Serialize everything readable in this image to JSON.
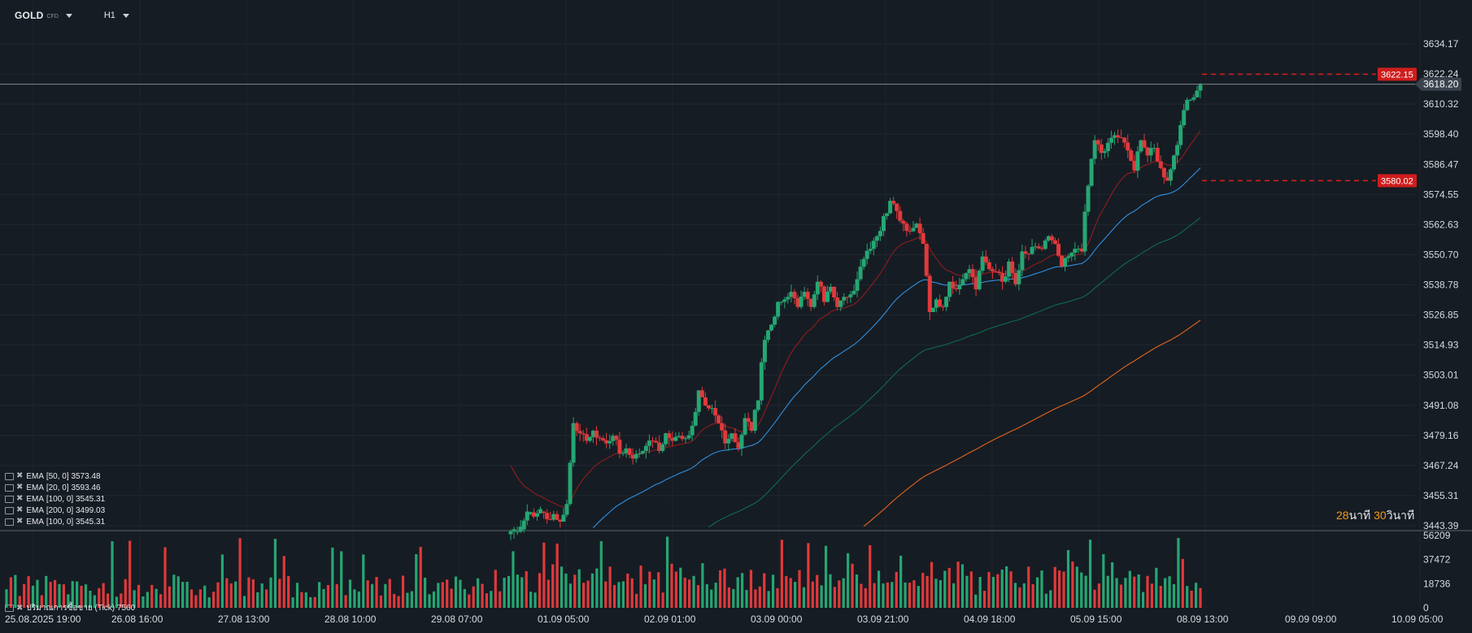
{
  "toolbar": {
    "symbol": "GOLD",
    "symbol_sub": "CFD",
    "timeframe": "H1"
  },
  "legend": [
    {
      "name": "EMA",
      "params": "[50, 0]",
      "value": "3573.48"
    },
    {
      "name": "EMA",
      "params": "[20, 0]",
      "value": "3593.46"
    },
    {
      "name": "EMA",
      "params": "[100, 0]",
      "value": "3545.31"
    },
    {
      "name": "EMA",
      "params": "[200, 0]",
      "value": "3499.03"
    },
    {
      "name": "EMA",
      "params": "[100, 0]",
      "value": "3545.31"
    }
  ],
  "volume_label": {
    "name": "ปริมาณการซื้อขาย (Tick)",
    "value": "7560"
  },
  "countdown": {
    "min": "28",
    "min_unit": "นาที",
    "sec": "30",
    "sec_unit": "วินาที"
  },
  "colors": {
    "background": "#161c23",
    "up": "#26a673",
    "down": "#e0393b",
    "price_tag": "#d01d1d",
    "ema20": "#8f1d1d",
    "ema50": "#2f8fe0",
    "ema100": "#0f6b50",
    "ema200": "#e26320"
  },
  "chart_data": {
    "type": "candlestick",
    "price_axis": [
      "3634.17",
      "3622.24",
      "3610.32",
      "3598.40",
      "3586.47",
      "3574.55",
      "3562.63",
      "3550.70",
      "3538.78",
      "3526.85",
      "3514.93",
      "3503.01",
      "3491.08",
      "3479.16",
      "3467.24",
      "3455.31",
      "3443.39"
    ],
    "ylim": [
      3443.39,
      3634.17
    ],
    "volume_axis": [
      "56209",
      "37472",
      "18736",
      "0"
    ],
    "volume_ylim": [
      0,
      56209
    ],
    "time_axis": [
      "25.08.2025 19:00",
      "26.08 16:00",
      "27.08 13:00",
      "28.08 10:00",
      "29.08 07:00",
      "01.09 05:00",
      "02.09 01:00",
      "03.09 00:00",
      "03.09 21:00",
      "04.09 18:00",
      "05.09 15:00",
      "08.09 13:00",
      "09.09 09:00",
      "10.09 05:00"
    ],
    "current_price": "3618.20",
    "markers": [
      {
        "label": "3622.15",
        "value": 3622.15
      },
      {
        "label": "3580.02",
        "value": 3580.02
      }
    ],
    "ohlc_anchors": [
      [
        3440,
        3442
      ],
      [
        3441,
        3443
      ],
      [
        3442,
        3449
      ],
      [
        3448,
        3447
      ],
      [
        3447,
        3450
      ],
      [
        3449,
        3446
      ],
      [
        3446,
        3448
      ],
      [
        3448,
        3445
      ],
      [
        3445,
        3452
      ],
      [
        3452,
        3484
      ],
      [
        3484,
        3480
      ],
      [
        3480,
        3477
      ],
      [
        3477,
        3481
      ],
      [
        3481,
        3478
      ],
      [
        3478,
        3476
      ],
      [
        3476,
        3479
      ],
      [
        3479,
        3472
      ],
      [
        3472,
        3474
      ],
      [
        3474,
        3470
      ],
      [
        3470,
        3472
      ],
      [
        3472,
        3475
      ],
      [
        3475,
        3477
      ],
      [
        3477,
        3473
      ],
      [
        3473,
        3480
      ],
      [
        3480,
        3477
      ],
      [
        3477,
        3479
      ],
      [
        3479,
        3478
      ],
      [
        3478,
        3483
      ],
      [
        3483,
        3497
      ],
      [
        3497,
        3491
      ],
      [
        3491,
        3490
      ],
      [
        3490,
        3484
      ],
      [
        3484,
        3476
      ],
      [
        3476,
        3480
      ],
      [
        3480,
        3474
      ],
      [
        3474,
        3486
      ],
      [
        3486,
        3481
      ],
      [
        3481,
        3493
      ],
      [
        3493,
        3517
      ],
      [
        3517,
        3523
      ],
      [
        3523,
        3532
      ],
      [
        3532,
        3533
      ],
      [
        3533,
        3536
      ],
      [
        3536,
        3530
      ],
      [
        3530,
        3536
      ],
      [
        3536,
        3530
      ],
      [
        3530,
        3540
      ],
      [
        3540,
        3532
      ],
      [
        3532,
        3538
      ],
      [
        3538,
        3530
      ],
      [
        3530,
        3534
      ],
      [
        3534,
        3535
      ],
      [
        3535,
        3541
      ],
      [
        3541,
        3549
      ],
      [
        3549,
        3553
      ],
      [
        3553,
        3558
      ],
      [
        3558,
        3566
      ],
      [
        3566,
        3572
      ],
      [
        3572,
        3568
      ],
      [
        3568,
        3563
      ],
      [
        3563,
        3560
      ],
      [
        3560,
        3563
      ],
      [
        3563,
        3555
      ],
      [
        3555,
        3528
      ],
      [
        3528,
        3533
      ],
      [
        3533,
        3530
      ],
      [
        3530,
        3540
      ],
      [
        3540,
        3537
      ],
      [
        3537,
        3541
      ],
      [
        3541,
        3545
      ],
      [
        3545,
        3537
      ],
      [
        3537,
        3550
      ],
      [
        3550,
        3545
      ],
      [
        3545,
        3544
      ],
      [
        3544,
        3540
      ],
      [
        3540,
        3548
      ],
      [
        3548,
        3539
      ],
      [
        3539,
        3552
      ],
      [
        3552,
        3551
      ],
      [
        3551,
        3554
      ],
      [
        3554,
        3553
      ],
      [
        3553,
        3558
      ],
      [
        3558,
        3555
      ],
      [
        3555,
        3546
      ],
      [
        3546,
        3550
      ],
      [
        3550,
        3553
      ],
      [
        3553,
        3552
      ],
      [
        3552,
        3578
      ],
      [
        3578,
        3596
      ],
      [
        3596,
        3591
      ],
      [
        3591,
        3595
      ],
      [
        3595,
        3598
      ],
      [
        3598,
        3597
      ],
      [
        3597,
        3592
      ],
      [
        3592,
        3584
      ],
      [
        3584,
        3596
      ],
      [
        3596,
        3590
      ],
      [
        3590,
        3593
      ],
      [
        3593,
        3585
      ],
      [
        3585,
        3580
      ],
      [
        3580,
        3590
      ],
      [
        3590,
        3602
      ],
      [
        3602,
        3612
      ],
      [
        3612,
        3613
      ],
      [
        3613,
        3618
      ]
    ]
  }
}
